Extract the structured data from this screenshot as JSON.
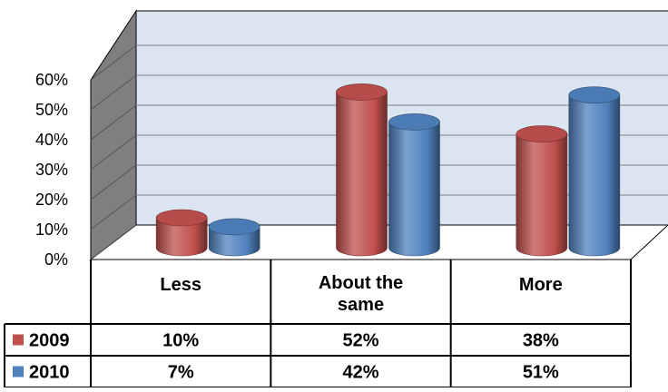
{
  "chart_data": {
    "type": "bar",
    "title": "",
    "xlabel": "",
    "ylabel": "",
    "categories": [
      [
        "Less"
      ],
      [
        "About the",
        "same"
      ],
      [
        "More"
      ]
    ],
    "series": [
      {
        "name": "2009",
        "values": [
          10,
          52,
          38
        ],
        "labels": [
          "10%",
          "52%",
          "38%"
        ],
        "color": "#c0504d"
      },
      {
        "name": "2010",
        "values": [
          7,
          42,
          51
        ],
        "labels": [
          "7%",
          "42%",
          "51%"
        ],
        "color": "#4f81bd"
      }
    ],
    "y_ticks": [
      "0%",
      "10%",
      "20%",
      "30%",
      "40%",
      "50%",
      "60%"
    ],
    "ylim": [
      0,
      60
    ],
    "grid": true,
    "legend": "data-table",
    "style": "3d-cylinder",
    "colors": {
      "wall": "#dbe5f1",
      "grid": "#808080"
    }
  }
}
